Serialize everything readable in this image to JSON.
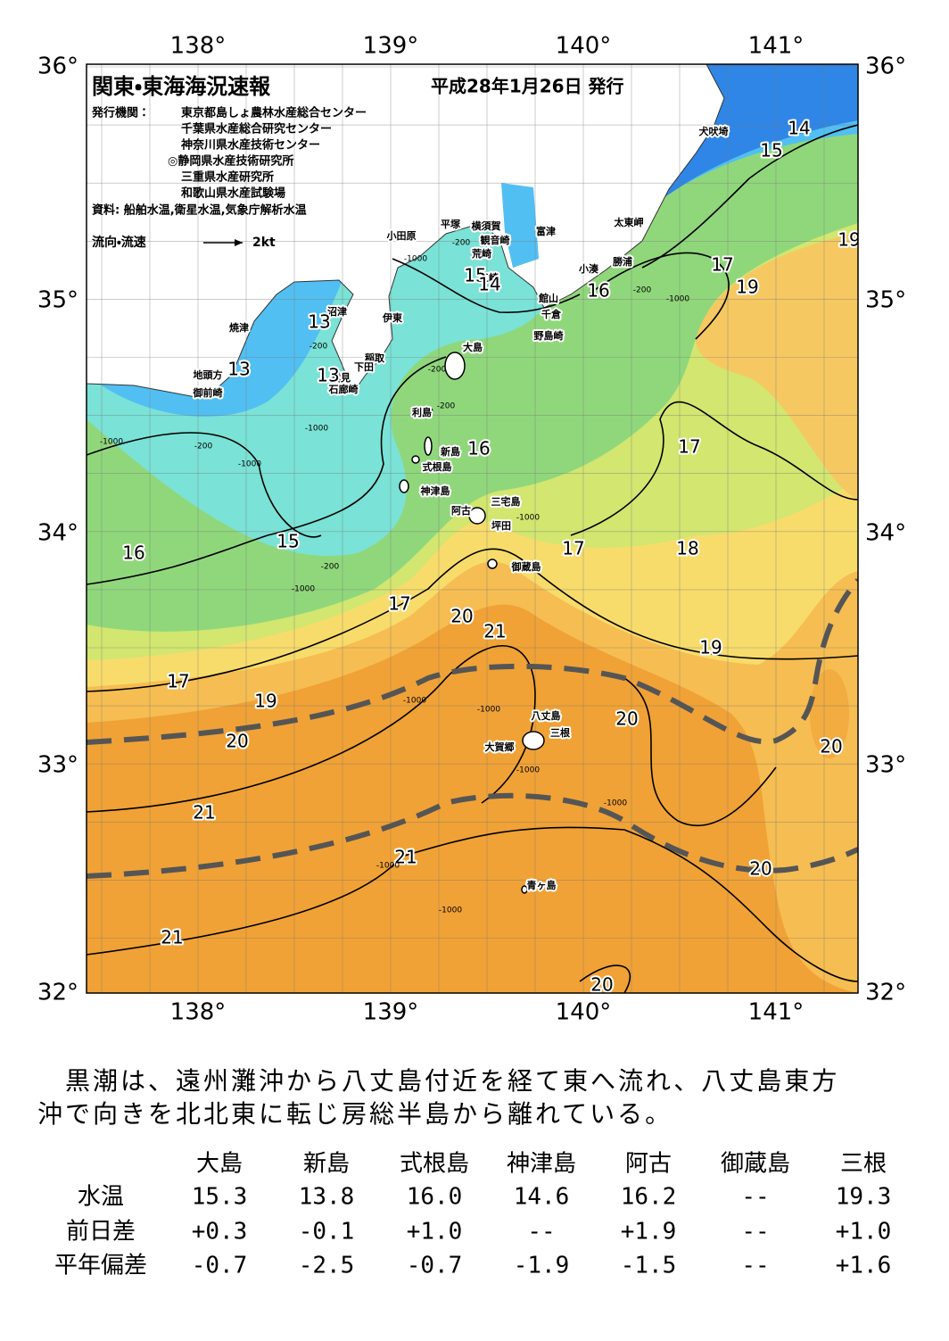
{
  "header": {
    "title": "関東・東海海況速報",
    "date": "平成28年1月26日 発行",
    "issuer_label": "発行機関：",
    "issuers": [
      "東京都島しょ農林水産総合センター",
      "千葉県水産総合研究センター",
      "神奈川県水産技術センター",
      "◎静岡県水産技術研究所",
      "三重県水産研究所",
      "和歌山県水産試験場"
    ],
    "source": "資料: 船舶水温,衛星水温,気象庁解析水温",
    "legend": {
      "label": "流向・流速",
      "speed": "2kt"
    }
  },
  "map": {
    "lon_labels_top": [
      "138°",
      "139°",
      "140°",
      "141°"
    ],
    "lon_labels_bottom": [
      "138°",
      "139°",
      "140°",
      "141°"
    ],
    "lat_labels_left": [
      "36°",
      "35°",
      "34°",
      "33°",
      "32°"
    ],
    "lat_labels_right": [
      "36°",
      "35°",
      "34°",
      "33°",
      "32°"
    ],
    "places": [
      "犬吠埼",
      "太東岬",
      "勝浦",
      "小湊",
      "富津",
      "館山",
      "千倉",
      "野島崎",
      "横須賀",
      "観音崎",
      "荒崎",
      "三崎",
      "平塚",
      "小田原",
      "沼津",
      "伊東",
      "焼津",
      "稲取",
      "下田",
      "雲見",
      "石廊崎",
      "地頭方",
      "御前崎",
      "大島",
      "利島",
      "新島",
      "式根島",
      "神津島",
      "三宅島",
      "阿古",
      "坪田",
      "御蔵島",
      "八丈島",
      "三根",
      "大賀郷",
      "青ヶ島"
    ],
    "isotherm_labels": [
      14,
      15,
      19,
      17,
      19,
      16,
      15,
      14,
      13,
      13,
      13,
      16,
      17,
      16,
      15,
      17,
      18,
      17,
      20,
      21,
      19,
      17,
      19,
      20,
      20,
      20,
      21,
      21,
      20,
      21,
      20
    ],
    "depth_labels": [
      -200,
      -1000,
      -200,
      -1000,
      -200,
      -1000,
      -200,
      -1000,
      -200,
      -1000,
      -1000,
      -1000,
      -1000,
      -1000,
      -1000,
      -1000,
      -200,
      -1000,
      -200,
      -1000
    ]
  },
  "summary": {
    "lines": [
      "　黒潮は、遠州灘沖から八丈島付近を経て東へ流れ、八丈島東方",
      "沖で向きを北北東に転じ房総半島から離れている。"
    ]
  },
  "table": {
    "columns": [
      "大島",
      "新島",
      "式根島",
      "神津島",
      "阿古",
      "御蔵島",
      "三根"
    ],
    "rows": [
      {
        "label": "水温",
        "cells": [
          "15.3",
          "13.8",
          "16.0",
          "14.6",
          "16.2",
          "--",
          "19.3"
        ]
      },
      {
        "label": "前日差",
        "cells": [
          "+0.3",
          "-0.1",
          "+1.0",
          "--",
          "+1.9",
          "--",
          "+1.0"
        ]
      },
      {
        "label": "平年偏差",
        "cells": [
          "-0.7",
          "-2.5",
          "-0.7",
          "-1.9",
          "-1.5",
          "--",
          "+1.6"
        ]
      }
    ]
  }
}
